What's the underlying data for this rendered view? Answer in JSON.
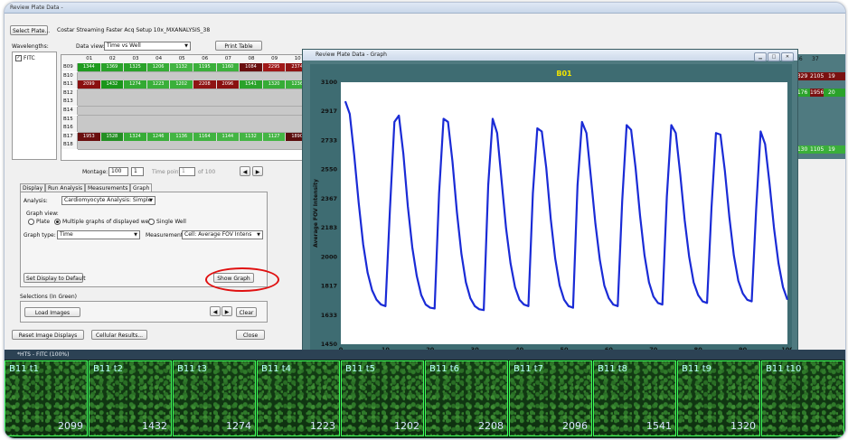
{
  "window": {
    "title": "Review Plate Data -"
  },
  "toolbar": {
    "select_plate": "Select Plate...",
    "plate_title": "Costar Streaming Faster Acq Setup 10x_MXANALYSIS_38"
  },
  "wavelengths": {
    "label": "Wavelengths:",
    "items": [
      {
        "label": "FITC",
        "checked": true
      }
    ]
  },
  "data_view": {
    "label": "Data view:",
    "value": "Time vs Well",
    "print_button": "Print Table"
  },
  "table": {
    "columns": [
      "01",
      "02",
      "03",
      "04",
      "05",
      "06",
      "07",
      "08",
      "09",
      "10"
    ],
    "rows": [
      {
        "label": "B09",
        "cells": [
          "1344",
          "1369",
          "1325",
          "1206",
          "1132",
          "1195",
          "1160",
          "1084",
          "2295",
          "2374"
        ],
        "colors": [
          "#1f9b1f",
          "#2aa22a",
          "#2aa22a",
          "#36ac36",
          "#43b443",
          "#3aaf3a",
          "#3db13d",
          "#6a0f0f",
          "#a01818",
          "#8f1414"
        ]
      },
      {
        "label": "B10",
        "cells": []
      },
      {
        "label": "B11",
        "cells": [
          "2099",
          "1432",
          "1274",
          "1223",
          "1202",
          "2208",
          "2096",
          "1541",
          "1320",
          "1236"
        ],
        "colors": [
          "#8a1010",
          "#1a961a",
          "#33aa33",
          "#3aaf3a",
          "#3ab03a",
          "#8f1414",
          "#8a1010",
          "#2aa22a",
          "#36ac36",
          "#3aaf3a"
        ]
      },
      {
        "label": "B12",
        "cells": []
      },
      {
        "label": "B13",
        "cells": []
      },
      {
        "label": "B14",
        "cells": []
      },
      {
        "label": "B15",
        "cells": []
      },
      {
        "label": "B16",
        "cells": []
      },
      {
        "label": "B17",
        "cells": [
          "1953",
          "1528",
          "1324",
          "1246",
          "1136",
          "1164",
          "1144",
          "1132",
          "1127",
          "1890"
        ],
        "colors": [
          "#6a0f0f",
          "#238f23",
          "#36ac36",
          "#3aaf3a",
          "#44b544",
          "#40b340",
          "#44b544",
          "#44b544",
          "#44b544",
          "#5a0d0d"
        ]
      },
      {
        "label": "B18",
        "cells": []
      }
    ],
    "right_cols": [
      "36",
      "37"
    ],
    "right_cells": [
      [
        "2329",
        "2105",
        "19"
      ],
      [
        "1176",
        "1956",
        "20"
      ],
      [
        "1130",
        "1105",
        "19"
      ]
    ]
  },
  "montage": {
    "label": "Montage:",
    "value": "100",
    "step": "1",
    "time_point_label": "Time point",
    "time_point_value": "1",
    "of_label": "of 100"
  },
  "tabs": [
    "Display",
    "Run Analysis",
    "Measurements",
    "Graph"
  ],
  "graph_tab": {
    "analysis_label": "Analysis:",
    "analysis_value": "Cardiomyocyte Analysis: Simple",
    "graph_view_label": "Graph view:",
    "view_options": [
      "Plate",
      "Multiple graphs of displayed wells",
      "Single Well"
    ],
    "graph_type_label": "Graph type:",
    "graph_type_value": "Time",
    "measurement_label": "Measurement:",
    "measurement_value": "Cell: Average FOV Intens",
    "set_default": "Set Display to Default",
    "show_graph": "Show Graph"
  },
  "selections": {
    "label": "Selections (In Green)",
    "load_images": "Load Images",
    "clear": "Clear"
  },
  "bottom_buttons": {
    "reset": "Reset Image Displays",
    "cellular": "Cellular Results...",
    "close": "Close"
  },
  "graph_window": {
    "title": "Review Plate Data - Graph"
  },
  "chart_data": {
    "type": "line",
    "title": "B01",
    "xlabel": "Timepoint",
    "ylabel": "Average FOV Intensity",
    "xlim": [
      0,
      100
    ],
    "ylim": [
      1450,
      3100
    ],
    "yticks": [
      1450,
      1633,
      1817,
      2000,
      2183,
      2367,
      2550,
      2733,
      2917,
      3100
    ],
    "xticks": [
      0,
      10,
      20,
      30,
      40,
      50,
      60,
      70,
      80,
      90,
      100
    ],
    "grid": false,
    "color": "#1a2bd6",
    "series": [
      {
        "x": [
          1,
          2,
          3,
          4,
          5,
          6,
          7,
          8,
          9,
          10,
          11,
          12,
          13,
          14,
          15,
          16,
          17,
          18,
          19,
          20,
          21,
          22,
          23,
          24,
          25,
          26,
          27,
          28,
          29,
          30,
          31,
          32,
          33,
          34,
          35,
          36,
          37,
          38,
          39,
          40,
          41,
          42,
          43,
          44,
          45,
          46,
          47,
          48,
          49,
          50,
          51,
          52,
          53,
          54,
          55,
          56,
          57,
          58,
          59,
          60,
          61,
          62,
          63,
          64,
          65,
          66,
          67,
          68,
          69,
          70,
          71,
          72,
          73,
          74,
          75,
          76,
          77,
          78,
          79,
          80,
          81,
          82,
          83,
          84,
          85,
          86,
          87,
          88,
          89,
          90,
          91,
          92,
          93,
          94,
          95,
          96,
          97,
          98,
          99,
          100
        ],
        "values": [
          2980,
          2900,
          2640,
          2340,
          2080,
          1900,
          1790,
          1730,
          1700,
          1690,
          2300,
          2850,
          2890,
          2650,
          2320,
          2060,
          1880,
          1760,
          1700,
          1680,
          1675,
          2400,
          2870,
          2850,
          2600,
          2280,
          2020,
          1840,
          1740,
          1690,
          1670,
          1665,
          2450,
          2870,
          2780,
          2480,
          2180,
          1960,
          1810,
          1730,
          1700,
          1690,
          2400,
          2810,
          2790,
          2560,
          2240,
          1990,
          1820,
          1730,
          1690,
          1680,
          2450,
          2850,
          2780,
          2500,
          2210,
          1980,
          1820,
          1740,
          1700,
          1690,
          2350,
          2830,
          2800,
          2560,
          2260,
          2010,
          1840,
          1750,
          1710,
          1700,
          2380,
          2830,
          2780,
          2520,
          2230,
          2000,
          1840,
          1760,
          1720,
          1710,
          2310,
          2780,
          2770,
          2540,
          2250,
          2010,
          1850,
          1770,
          1730,
          1720,
          2300,
          2790,
          2710,
          2460,
          2180,
          1960,
          1810,
          1730
        ]
      }
    ]
  },
  "strip": {
    "title": "*HTS - FITC (100%)",
    "thumbs": [
      {
        "label": "B11 t1",
        "value": "2099"
      },
      {
        "label": "B11 t2",
        "value": "1432"
      },
      {
        "label": "B11 t3",
        "value": "1274"
      },
      {
        "label": "B11 t4",
        "value": "1223"
      },
      {
        "label": "B11 t5",
        "value": "1202"
      },
      {
        "label": "B11 t6",
        "value": "2208"
      },
      {
        "label": "B11 t7",
        "value": "2096"
      },
      {
        "label": "B11 t8",
        "value": "1541"
      },
      {
        "label": "B11 t9",
        "value": "1320"
      },
      {
        "label": "B11 t10",
        "value": ""
      }
    ]
  }
}
